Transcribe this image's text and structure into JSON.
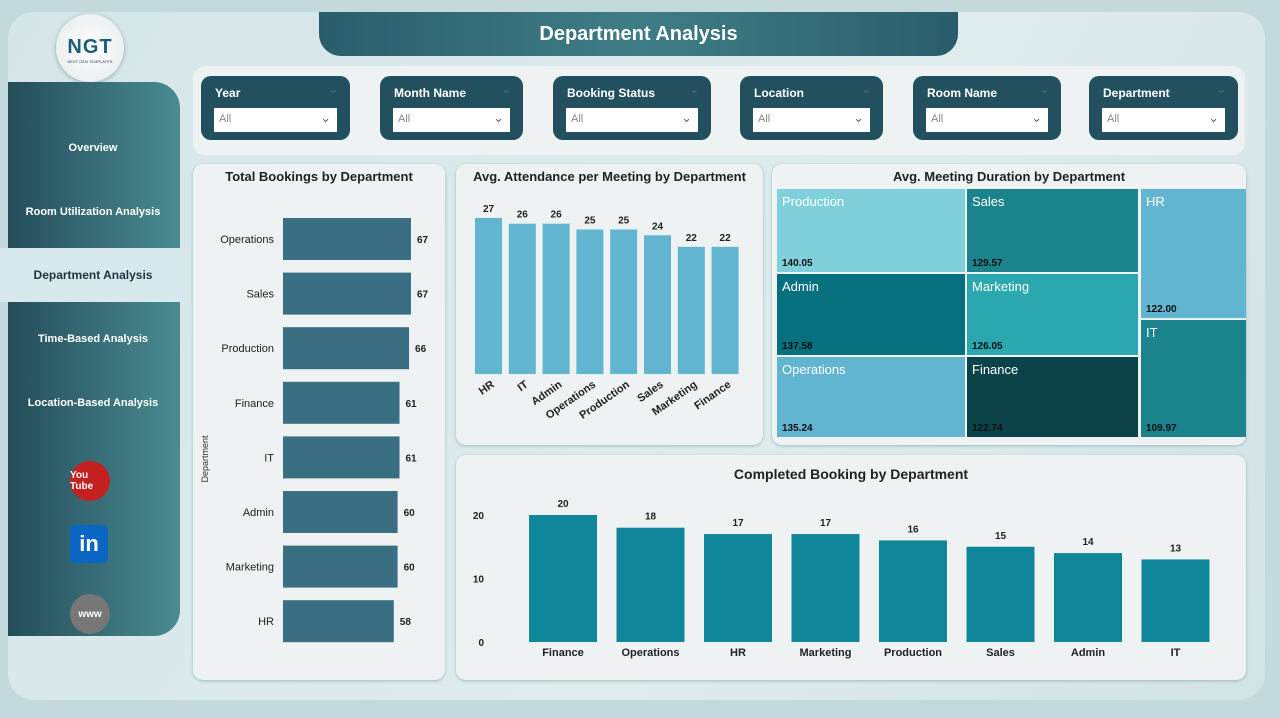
{
  "title": "Department Analysis",
  "logo": {
    "text": "NGT",
    "subtext": "NEXT GEN TEMPLATES"
  },
  "sidebar": {
    "items": [
      {
        "label": "Overview"
      },
      {
        "label": "Room Utilization Analysis"
      },
      {
        "label": "Department Analysis",
        "active": true
      },
      {
        "label": "Time-Based Analysis"
      },
      {
        "label": "Location-Based Analysis"
      }
    ],
    "social": [
      {
        "icon": "youtube-icon",
        "label": "You Tube",
        "color": "#c4201f"
      },
      {
        "icon": "linkedin-icon",
        "label": "in",
        "color": "#0a66c2"
      },
      {
        "icon": "globe-icon",
        "label": "www",
        "color": "#777"
      }
    ]
  },
  "filters": [
    {
      "label": "Year",
      "value": "All"
    },
    {
      "label": "Month Name",
      "value": "All"
    },
    {
      "label": "Booking Status",
      "value": "All"
    },
    {
      "label": "Location",
      "value": "All"
    },
    {
      "label": "Room Name",
      "value": "All"
    },
    {
      "label": "Department",
      "value": "All"
    }
  ],
  "chart_data": [
    {
      "type": "bar",
      "orientation": "horizontal",
      "title": "Total Bookings by Department",
      "ylabel": "Department",
      "categories": [
        "Operations",
        "Sales",
        "Production",
        "Finance",
        "IT",
        "Admin",
        "Marketing",
        "HR"
      ],
      "values": [
        67,
        67,
        66,
        61,
        61,
        60,
        60,
        58
      ],
      "color": "#3a6e83"
    },
    {
      "type": "bar",
      "title": "Avg. Attendance per Meeting by Department",
      "categories": [
        "HR",
        "IT",
        "Admin",
        "Operations",
        "Production",
        "Sales",
        "Marketing",
        "Finance"
      ],
      "values": [
        27,
        26,
        26,
        25,
        25,
        24,
        22,
        22
      ],
      "color": "#62b5d0"
    },
    {
      "type": "treemap",
      "title": "Avg. Meeting Duration by Department",
      "items": [
        {
          "label": "Production",
          "value": "140.05",
          "color": "#80d0dc"
        },
        {
          "label": "Admin",
          "value": "137.58",
          "color": "#07707f"
        },
        {
          "label": "Operations",
          "value": "135.24",
          "color": "#62b5d0"
        },
        {
          "label": "Sales",
          "value": "129.57",
          "color": "#1a838b"
        },
        {
          "label": "Marketing",
          "value": "126.05",
          "color": "#2aa7af"
        },
        {
          "label": "Finance",
          "value": "122.74",
          "color": "#0c4249"
        },
        {
          "label": "HR",
          "value": "122.00",
          "color": "#62b5d0"
        },
        {
          "label": "IT",
          "value": "109.97",
          "color": "#1a838b"
        }
      ]
    },
    {
      "type": "bar",
      "title": "Completed Booking by Department",
      "categories": [
        "Finance",
        "Operations",
        "HR",
        "Marketing",
        "Production",
        "Sales",
        "Admin",
        "IT"
      ],
      "values": [
        20,
        18,
        17,
        17,
        16,
        15,
        14,
        13
      ],
      "yticks": [
        0,
        10,
        20
      ],
      "color": "#10869a"
    }
  ]
}
